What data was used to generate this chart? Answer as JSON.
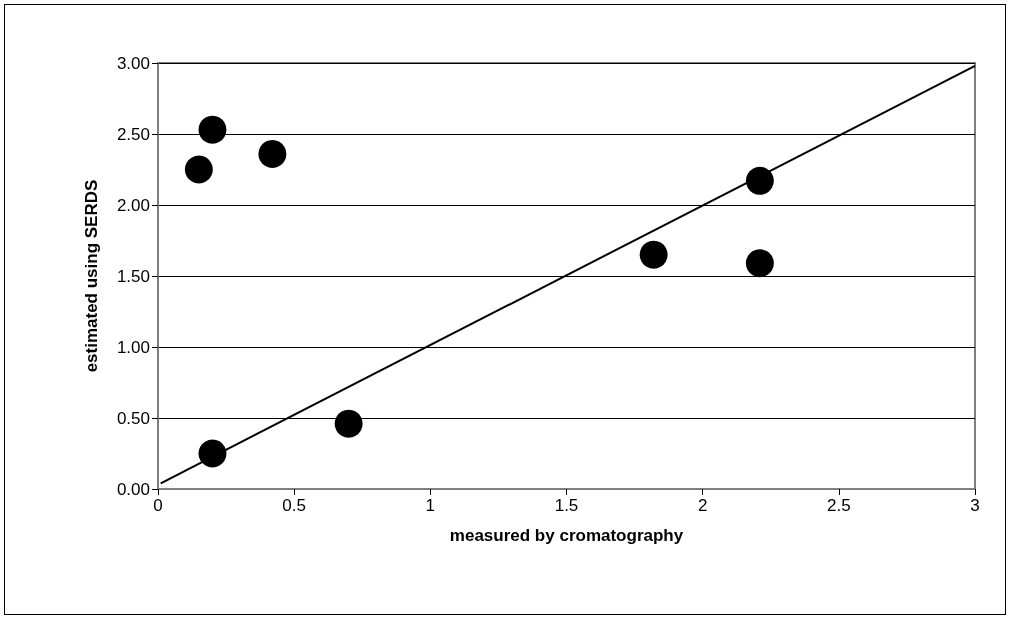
{
  "chart_data": {
    "type": "scatter",
    "xlabel": "measured by cromatography",
    "ylabel": "estimated using SERDS",
    "series": [
      {
        "color": "#000000",
        "marker": "circle",
        "x": [
          0.15,
          0.2,
          0.42,
          0.2,
          0.7,
          1.82,
          2.21,
          2.21
        ],
        "values": [
          2.25,
          2.53,
          2.36,
          0.25,
          0.46,
          1.65,
          2.17,
          1.59
        ]
      },
      {
        "type": "line",
        "color": "#000000",
        "marker": "none",
        "line_style": "solid",
        "x": [
          0.01,
          3
        ],
        "values": [
          0.04,
          2.98
        ]
      }
    ],
    "xlim": [
      0,
      3
    ],
    "xticks": [
      0,
      0.5,
      1,
      1.5,
      2,
      2.5,
      3
    ],
    "ylim": [
      0,
      3
    ],
    "yticks": [
      {
        "value": 0,
        "label": "0.00"
      },
      {
        "value": 0.5,
        "label": "0.50"
      },
      {
        "value": 1,
        "label": "1.00"
      },
      {
        "value": 1.5,
        "label": "1.50"
      },
      {
        "value": 2,
        "label": "2.00"
      },
      {
        "value": 2.5,
        "label": "2.50"
      },
      {
        "value": 3,
        "label": "3.00"
      }
    ],
    "grid": "y"
  }
}
